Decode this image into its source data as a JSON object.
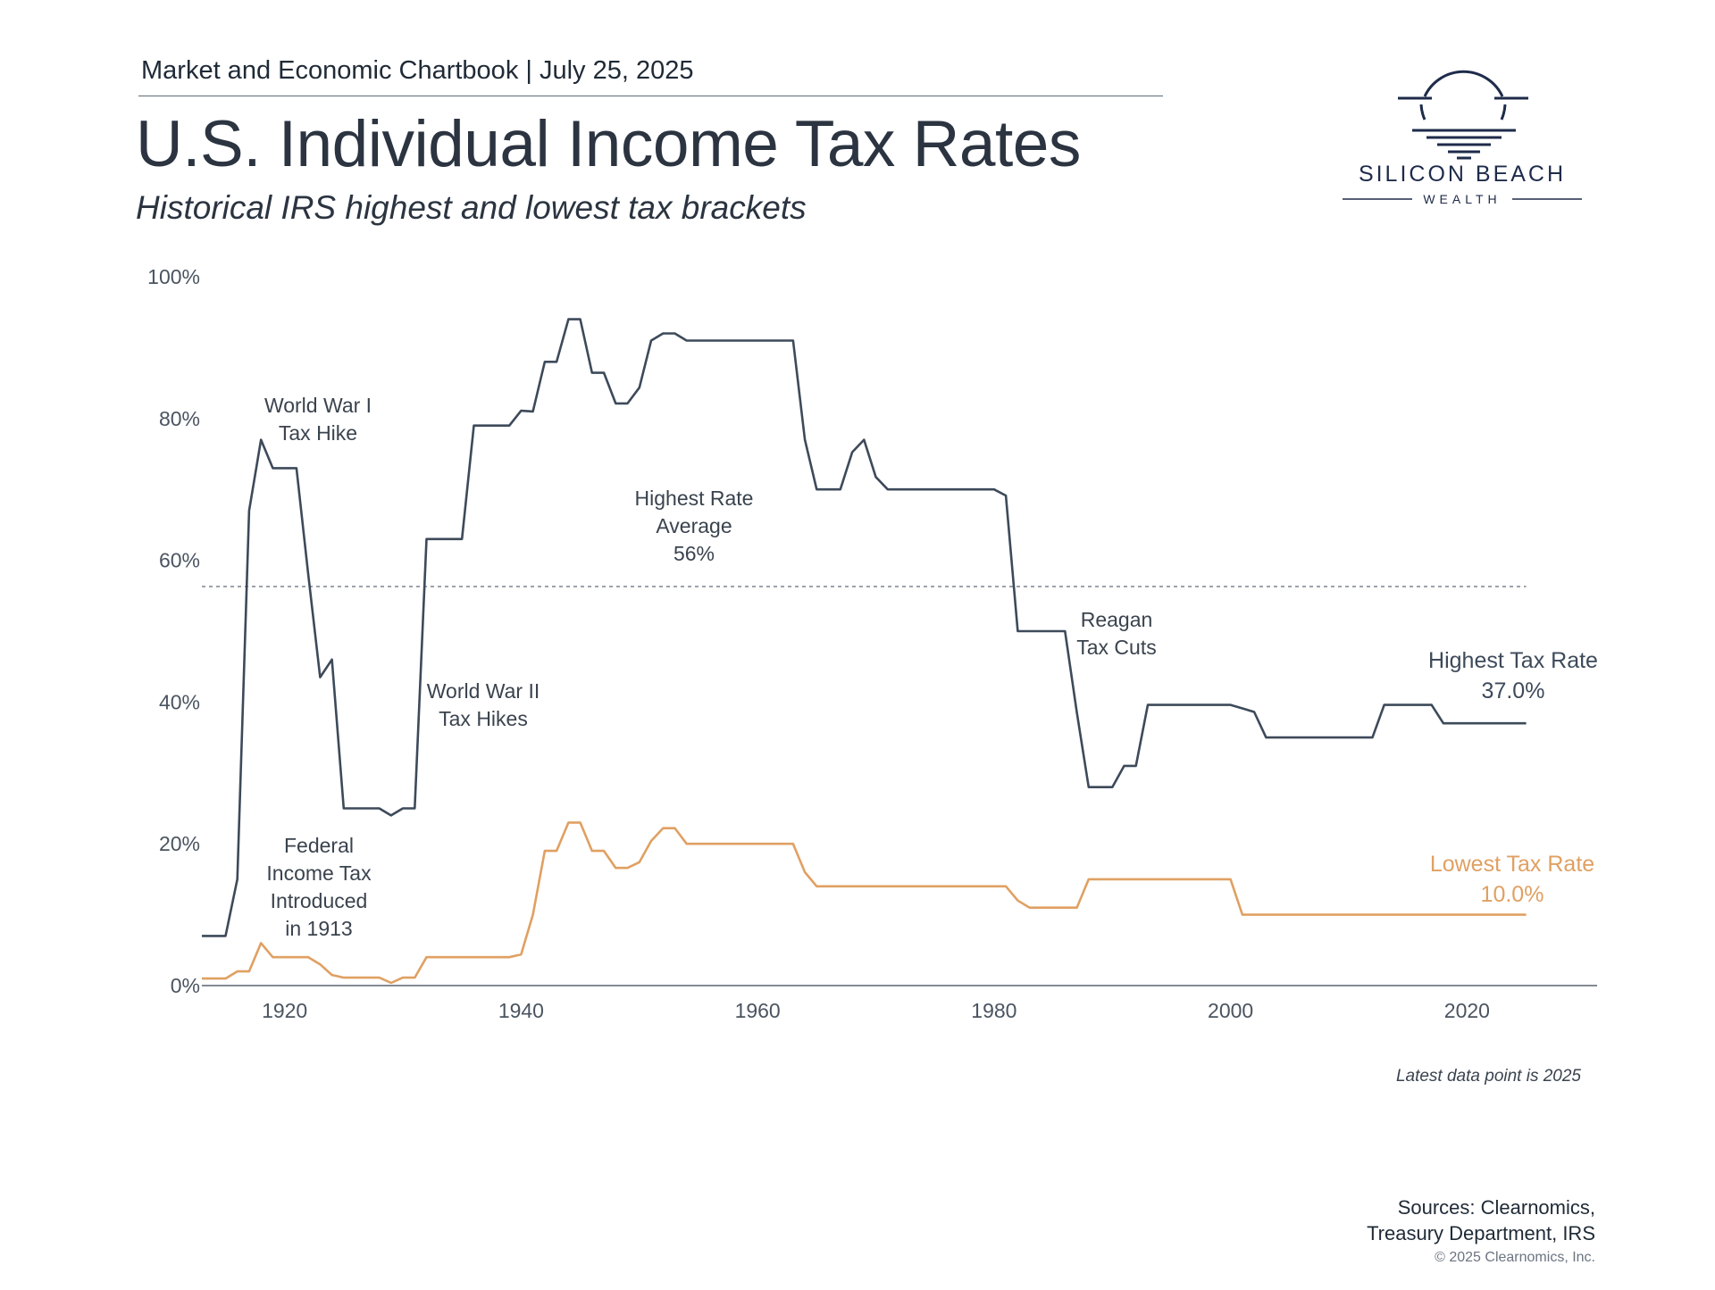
{
  "header": {
    "chartbook_line": "Market and Economic Chartbook | July 25, 2025",
    "title": "U.S. Individual Income Tax Rates",
    "subtitle": "Historical IRS highest and lowest tax brackets"
  },
  "logo": {
    "name_line1": "SILICON BEACH",
    "name_line2": "WEALTH"
  },
  "footer": {
    "latest_note": "Latest data point is 2025",
    "sources_line1": "Sources: Clearnomics,",
    "sources_line2": "Treasury Department, IRS",
    "copyright": "© 2025 Clearnomics, Inc."
  },
  "colors": {
    "highest": "#3d4a5a",
    "lowest": "#e0a062",
    "axis": "#5a6470",
    "average_line": "#7a8490"
  },
  "chart_data": {
    "type": "line",
    "title": "U.S. Individual Income Tax Rates",
    "subtitle": "Historical IRS highest and lowest tax brackets",
    "xlim": [
      1913,
      2031
    ],
    "ylim": [
      0,
      100
    ],
    "x_ticks": [
      1920,
      1940,
      1960,
      1980,
      2000,
      2020
    ],
    "y_ticks": [
      0,
      20,
      40,
      60,
      80,
      100
    ],
    "y_tick_labels": [
      "0%",
      "20%",
      "40%",
      "60%",
      "80%",
      "100%"
    ],
    "grid": false,
    "average": {
      "value": 56.3,
      "label_lines": [
        "Highest Rate",
        "Average",
        "56%"
      ]
    },
    "series": [
      {
        "name": "Highest Tax Rate",
        "end_label": "37.0%",
        "color": "#3d4a5a",
        "points": [
          [
            1913,
            7
          ],
          [
            1915,
            7
          ],
          [
            1916,
            15
          ],
          [
            1917,
            67
          ],
          [
            1918,
            77
          ],
          [
            1919,
            73
          ],
          [
            1920,
            73
          ],
          [
            1921,
            73
          ],
          [
            1922,
            58
          ],
          [
            1923,
            43.5
          ],
          [
            1924,
            46
          ],
          [
            1925,
            25
          ],
          [
            1926,
            25
          ],
          [
            1927,
            25
          ],
          [
            1928,
            25
          ],
          [
            1929,
            24
          ],
          [
            1930,
            25
          ],
          [
            1931,
            25
          ],
          [
            1932,
            63
          ],
          [
            1933,
            63
          ],
          [
            1934,
            63
          ],
          [
            1935,
            63
          ],
          [
            1936,
            79
          ],
          [
            1937,
            79
          ],
          [
            1938,
            79
          ],
          [
            1939,
            79
          ],
          [
            1940,
            81.1
          ],
          [
            1941,
            81
          ],
          [
            1942,
            88
          ],
          [
            1943,
            88
          ],
          [
            1944,
            94
          ],
          [
            1945,
            94
          ],
          [
            1946,
            86.45
          ],
          [
            1947,
            86.45
          ],
          [
            1948,
            82.13
          ],
          [
            1949,
            82.13
          ],
          [
            1950,
            84.36
          ],
          [
            1951,
            91
          ],
          [
            1952,
            92
          ],
          [
            1953,
            92
          ],
          [
            1954,
            91
          ],
          [
            1955,
            91
          ],
          [
            1956,
            91
          ],
          [
            1957,
            91
          ],
          [
            1958,
            91
          ],
          [
            1959,
            91
          ],
          [
            1960,
            91
          ],
          [
            1961,
            91
          ],
          [
            1962,
            91
          ],
          [
            1963,
            91
          ],
          [
            1964,
            77
          ],
          [
            1965,
            70
          ],
          [
            1966,
            70
          ],
          [
            1967,
            70
          ],
          [
            1968,
            75.25
          ],
          [
            1969,
            77
          ],
          [
            1970,
            71.75
          ],
          [
            1971,
            70
          ],
          [
            1972,
            70
          ],
          [
            1973,
            70
          ],
          [
            1974,
            70
          ],
          [
            1975,
            70
          ],
          [
            1976,
            70
          ],
          [
            1977,
            70
          ],
          [
            1978,
            70
          ],
          [
            1979,
            70
          ],
          [
            1980,
            70
          ],
          [
            1981,
            69.13
          ],
          [
            1982,
            50
          ],
          [
            1983,
            50
          ],
          [
            1984,
            50
          ],
          [
            1985,
            50
          ],
          [
            1986,
            50
          ],
          [
            1987,
            38.5
          ],
          [
            1988,
            28
          ],
          [
            1989,
            28
          ],
          [
            1990,
            28
          ],
          [
            1991,
            31
          ],
          [
            1992,
            31
          ],
          [
            1993,
            39.6
          ],
          [
            1994,
            39.6
          ],
          [
            1995,
            39.6
          ],
          [
            1996,
            39.6
          ],
          [
            1997,
            39.6
          ],
          [
            1998,
            39.6
          ],
          [
            1999,
            39.6
          ],
          [
            2000,
            39.6
          ],
          [
            2001,
            39.1
          ],
          [
            2002,
            38.6
          ],
          [
            2003,
            35
          ],
          [
            2004,
            35
          ],
          [
            2005,
            35
          ],
          [
            2006,
            35
          ],
          [
            2007,
            35
          ],
          [
            2008,
            35
          ],
          [
            2009,
            35
          ],
          [
            2010,
            35
          ],
          [
            2011,
            35
          ],
          [
            2012,
            35
          ],
          [
            2013,
            39.6
          ],
          [
            2014,
            39.6
          ],
          [
            2015,
            39.6
          ],
          [
            2016,
            39.6
          ],
          [
            2017,
            39.6
          ],
          [
            2018,
            37
          ],
          [
            2019,
            37
          ],
          [
            2020,
            37
          ],
          [
            2021,
            37
          ],
          [
            2022,
            37
          ],
          [
            2023,
            37
          ],
          [
            2024,
            37
          ],
          [
            2025,
            37
          ]
        ]
      },
      {
        "name": "Lowest Tax Rate",
        "end_label": "10.0%",
        "color": "#e0a062",
        "points": [
          [
            1913,
            1
          ],
          [
            1915,
            1
          ],
          [
            1916,
            2
          ],
          [
            1917,
            2
          ],
          [
            1918,
            6
          ],
          [
            1919,
            4
          ],
          [
            1920,
            4
          ],
          [
            1921,
            4
          ],
          [
            1922,
            4
          ],
          [
            1923,
            3
          ],
          [
            1924,
            1.5
          ],
          [
            1925,
            1.125
          ],
          [
            1926,
            1.125
          ],
          [
            1927,
            1.125
          ],
          [
            1928,
            1.125
          ],
          [
            1929,
            0.375
          ],
          [
            1930,
            1.125
          ],
          [
            1931,
            1.125
          ],
          [
            1932,
            4
          ],
          [
            1933,
            4
          ],
          [
            1934,
            4
          ],
          [
            1935,
            4
          ],
          [
            1936,
            4
          ],
          [
            1937,
            4
          ],
          [
            1938,
            4
          ],
          [
            1939,
            4
          ],
          [
            1940,
            4.4
          ],
          [
            1941,
            10
          ],
          [
            1942,
            19
          ],
          [
            1943,
            19
          ],
          [
            1944,
            23
          ],
          [
            1945,
            23
          ],
          [
            1946,
            19
          ],
          [
            1947,
            19
          ],
          [
            1948,
            16.6
          ],
          [
            1949,
            16.6
          ],
          [
            1950,
            17.4
          ],
          [
            1951,
            20.4
          ],
          [
            1952,
            22.2
          ],
          [
            1953,
            22.2
          ],
          [
            1954,
            20
          ],
          [
            1955,
            20
          ],
          [
            1956,
            20
          ],
          [
            1957,
            20
          ],
          [
            1958,
            20
          ],
          [
            1959,
            20
          ],
          [
            1960,
            20
          ],
          [
            1961,
            20
          ],
          [
            1962,
            20
          ],
          [
            1963,
            20
          ],
          [
            1964,
            16
          ],
          [
            1965,
            14
          ],
          [
            1966,
            14
          ],
          [
            1967,
            14
          ],
          [
            1968,
            14
          ],
          [
            1969,
            14
          ],
          [
            1970,
            14
          ],
          [
            1971,
            14
          ],
          [
            1972,
            14
          ],
          [
            1973,
            14
          ],
          [
            1974,
            14
          ],
          [
            1975,
            14
          ],
          [
            1976,
            14
          ],
          [
            1977,
            14
          ],
          [
            1978,
            14
          ],
          [
            1979,
            14
          ],
          [
            1980,
            14
          ],
          [
            1981,
            14
          ],
          [
            1982,
            12
          ],
          [
            1983,
            11
          ],
          [
            1984,
            11
          ],
          [
            1985,
            11
          ],
          [
            1986,
            11
          ],
          [
            1987,
            11
          ],
          [
            1988,
            15
          ],
          [
            1989,
            15
          ],
          [
            1990,
            15
          ],
          [
            1991,
            15
          ],
          [
            1992,
            15
          ],
          [
            1993,
            15
          ],
          [
            1994,
            15
          ],
          [
            1995,
            15
          ],
          [
            1996,
            15
          ],
          [
            1997,
            15
          ],
          [
            1998,
            15
          ],
          [
            1999,
            15
          ],
          [
            2000,
            15
          ],
          [
            2001,
            10
          ],
          [
            2002,
            10
          ],
          [
            2003,
            10
          ],
          [
            2004,
            10
          ],
          [
            2005,
            10
          ],
          [
            2006,
            10
          ],
          [
            2007,
            10
          ],
          [
            2008,
            10
          ],
          [
            2009,
            10
          ],
          [
            2010,
            10
          ],
          [
            2011,
            10
          ],
          [
            2012,
            10
          ],
          [
            2013,
            10
          ],
          [
            2014,
            10
          ],
          [
            2015,
            10
          ],
          [
            2016,
            10
          ],
          [
            2017,
            10
          ],
          [
            2018,
            10
          ],
          [
            2019,
            10
          ],
          [
            2020,
            10
          ],
          [
            2021,
            10
          ],
          [
            2022,
            10
          ],
          [
            2023,
            10
          ],
          [
            2024,
            10
          ],
          [
            2025,
            10
          ]
        ]
      }
    ],
    "annotations": [
      {
        "id": "ww1",
        "lines": [
          "World War I",
          "Tax Hike"
        ]
      },
      {
        "id": "ww2",
        "lines": [
          "World War II",
          "Tax Hikes"
        ]
      },
      {
        "id": "reagan",
        "lines": [
          "Reagan",
          "Tax Cuts"
        ]
      },
      {
        "id": "fed",
        "lines": [
          "Federal",
          "Income Tax",
          "Introduced",
          "in 1913"
        ]
      }
    ]
  }
}
